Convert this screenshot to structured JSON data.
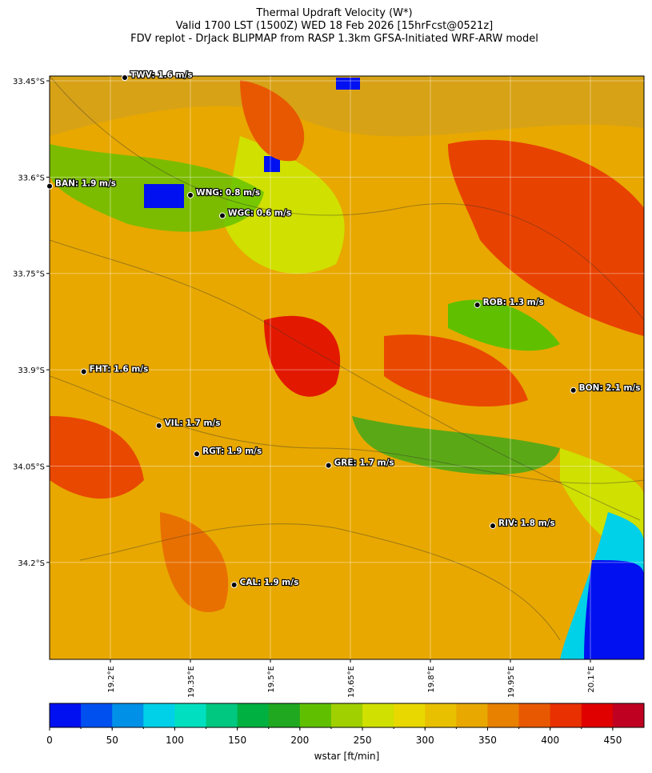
{
  "title": [
    "Thermal Updraft Velocity (W*)",
    "Valid 1700 LST (1500Z) WED 18 Feb 2026 [15hrFcst@0521z]",
    "FDV replot - DrJack BLIPMAP from RASP 1.3km GFSA-Initiated WRF-ARW model"
  ],
  "map": {
    "lonlim": [
      19.086,
      20.2005
    ],
    "latlim": [
      33.4425,
      34.351
    ],
    "lat_ticks": [
      {
        "value": 33.45,
        "label": "33.45°S"
      },
      {
        "value": 33.6,
        "label": "33.6°S"
      },
      {
        "value": 33.75,
        "label": "33.75°S"
      },
      {
        "value": 33.9,
        "label": "33.9°S"
      },
      {
        "value": 34.05,
        "label": "34.05°S"
      },
      {
        "value": 34.2,
        "label": "34.2°S"
      }
    ],
    "lon_ticks": [
      {
        "value": 19.2,
        "label": "19.2°E"
      },
      {
        "value": 19.35,
        "label": "19.35°E"
      },
      {
        "value": 19.5,
        "label": "19.5°E"
      },
      {
        "value": 19.65,
        "label": "19.65°E"
      },
      {
        "value": 19.8,
        "label": "19.8°E"
      },
      {
        "value": 19.95,
        "label": "19.95°E"
      },
      {
        "value": 20.1,
        "label": "20.1°E"
      }
    ],
    "stations": [
      {
        "label": "TWV: 1.6 m/s",
        "lon": 19.227,
        "lat": 33.445
      },
      {
        "label": "BAN: 1.9 m/s",
        "lon": 19.086,
        "lat": 33.614
      },
      {
        "label": "WNG: 0.8 m/s",
        "lon": 19.35,
        "lat": 33.628
      },
      {
        "label": "WGC: 0.6 m/s",
        "lon": 19.41,
        "lat": 33.66
      },
      {
        "label": "ROB: 1.3 m/s",
        "lon": 19.888,
        "lat": 33.799
      },
      {
        "label": "FHT: 1.6 m/s",
        "lon": 19.15,
        "lat": 33.903
      },
      {
        "label": "BON: 2.1 m/s",
        "lon": 20.068,
        "lat": 33.932
      },
      {
        "label": "VIL: 1.7 m/s",
        "lon": 19.291,
        "lat": 33.987
      },
      {
        "label": "RGT: 1.9 m/s",
        "lon": 19.362,
        "lat": 34.031
      },
      {
        "label": "GRE: 1.7 m/s",
        "lon": 19.609,
        "lat": 34.049
      },
      {
        "label": "RIV: 1.8 m/s",
        "lon": 19.917,
        "lat": 34.143
      },
      {
        "label": "CAL: 1.9 m/s",
        "lon": 19.432,
        "lat": 34.235
      }
    ]
  },
  "colorbar": {
    "colors": [
      "#0010f0",
      "#0050f0",
      "#0090e8",
      "#00d0e8",
      "#00e0c0",
      "#00c880",
      "#00b040",
      "#20a820",
      "#60c000",
      "#a0d000",
      "#d0e000",
      "#e8d800",
      "#e8c000",
      "#e8a800",
      "#e88000",
      "#e85800",
      "#e83000",
      "#e00000",
      "#c00020"
    ],
    "lim": [
      0,
      475
    ],
    "ticks": [
      0,
      50,
      100,
      150,
      200,
      250,
      300,
      350,
      400,
      450
    ],
    "label": "wstar [ft/min]"
  }
}
